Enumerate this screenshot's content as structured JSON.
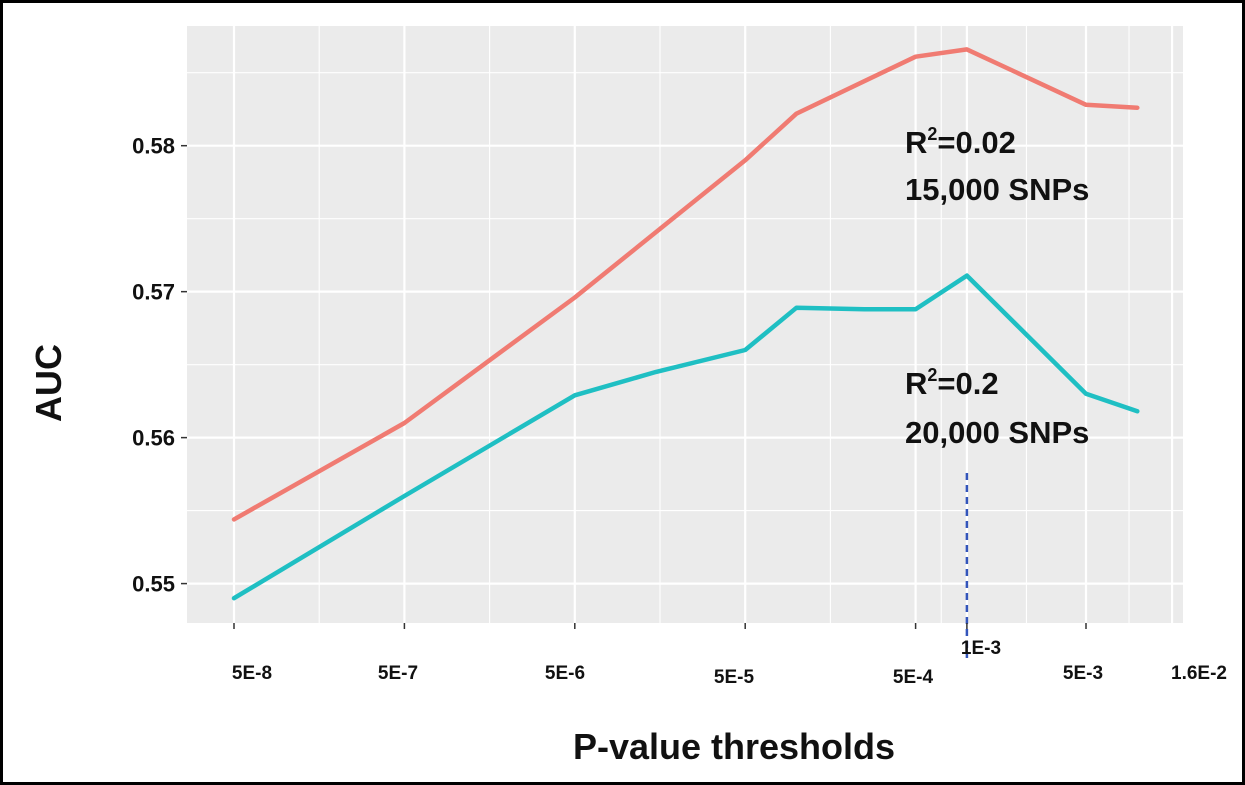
{
  "chart_data": {
    "type": "line",
    "xlabel": "P-value thresholds",
    "ylabel": "AUC",
    "x_ticks": [
      "5E-8",
      "5E-7",
      "5E-6",
      "5E-5",
      "5E-4",
      "1E-3",
      "5E-3",
      "1.6E-2"
    ],
    "x_scale": "log",
    "y_ticks": [
      "0.55",
      "0.56",
      "0.57",
      "0.58"
    ],
    "ylim": [
      0.5473,
      0.5882
    ],
    "grid": true,
    "series": [
      {
        "color": "#F07B72",
        "points": [
          {
            "x": 5e-08,
            "y": 0.5544
          },
          {
            "x": 5e-07,
            "y": 0.561
          },
          {
            "x": 5e-06,
            "y": 0.5696
          },
          {
            "x": 5e-05,
            "y": 0.579
          },
          {
            "x": 0.0001,
            "y": 0.5822
          },
          {
            "x": 0.0005,
            "y": 0.5861
          },
          {
            "x": 0.001,
            "y": 0.5866
          },
          {
            "x": 0.005,
            "y": 0.5828
          },
          {
            "x": 0.01,
            "y": 0.5826
          }
        ]
      },
      {
        "color": "#1FBFC3",
        "points": [
          {
            "x": 5e-08,
            "y": 0.549
          },
          {
            "x": 5e-07,
            "y": 0.556
          },
          {
            "x": 5e-06,
            "y": 0.5629
          },
          {
            "x": 1.5e-05,
            "y": 0.5645
          },
          {
            "x": 5e-05,
            "y": 0.566
          },
          {
            "x": 0.0001,
            "y": 0.5689
          },
          {
            "x": 0.00025,
            "y": 0.5688
          },
          {
            "x": 0.0005,
            "y": 0.5688
          },
          {
            "x": 0.001,
            "y": 0.5711
          },
          {
            "x": 0.005,
            "y": 0.563
          },
          {
            "x": 0.01,
            "y": 0.5618
          }
        ]
      }
    ],
    "annotations": [
      {
        "r2_label": "R",
        "r2_sup": "2",
        "r2_value": "=0.02",
        "snps": "15,000 SNPs"
      },
      {
        "r2_label": "R",
        "r2_sup": "2",
        "r2_value": "=0.2",
        "snps": "20,000 SNPs"
      }
    ],
    "marker_line": {
      "x": 0.001,
      "style": "dashed",
      "color": "#3355BB"
    }
  }
}
